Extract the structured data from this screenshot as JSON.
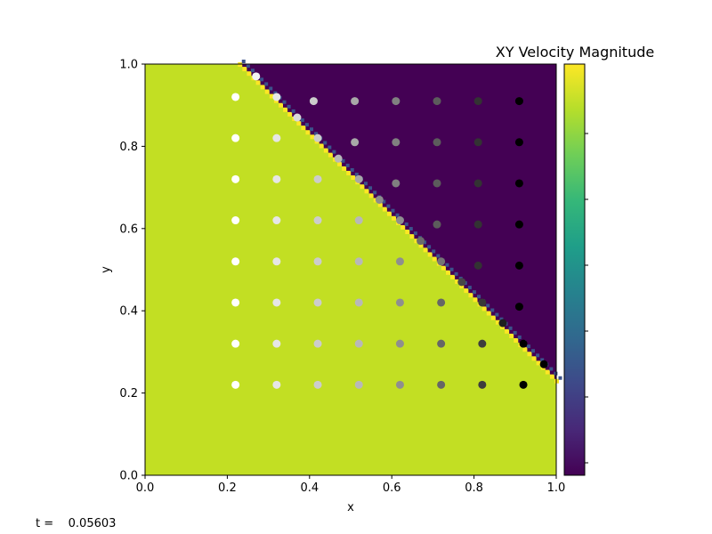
{
  "chart_data": {
    "type": "heatmap",
    "title": "XY Velocity Magnitude",
    "xlabel": "x",
    "ylabel": "y",
    "xlim": [
      0.0,
      1.0
    ],
    "ylim": [
      0.0,
      1.0
    ],
    "x_ticks": [
      "0.0",
      "0.2",
      "0.4",
      "0.6",
      "0.8",
      "1.0"
    ],
    "y_ticks": [
      "0.0",
      "0.2",
      "0.4",
      "0.6",
      "0.8",
      "1.0"
    ],
    "grid": false,
    "field": {
      "description_of_region_boundary": "interface line from (0.23,1.0) to (1.0,0.23)",
      "lower_left_color": "#c2df23",
      "upper_right_color": "#440154",
      "interface_color": "#fde725",
      "interface_edge_color": "#3b528b",
      "interface_start": [
        0.23,
        1.0
      ],
      "interface_end": [
        1.0,
        0.23
      ]
    },
    "colorbar": {
      "colormap": "viridis",
      "colors": [
        "#440154",
        "#482878",
        "#3e4989",
        "#31688e",
        "#26828e",
        "#1f9e89",
        "#35b779",
        "#6ece58",
        "#b5de2b",
        "#fde725"
      ],
      "tick_count": 6,
      "tick_labels": []
    },
    "particles": [
      {
        "x": 0.22,
        "y": 0.92,
        "g": 1.0
      },
      {
        "x": 0.32,
        "y": 0.92,
        "g": 0.9
      },
      {
        "x": 0.41,
        "y": 0.91,
        "g": 0.8
      },
      {
        "x": 0.51,
        "y": 0.91,
        "g": 0.66
      },
      {
        "x": 0.61,
        "y": 0.91,
        "g": 0.5
      },
      {
        "x": 0.71,
        "y": 0.91,
        "g": 0.36
      },
      {
        "x": 0.81,
        "y": 0.91,
        "g": 0.2
      },
      {
        "x": 0.91,
        "y": 0.91,
        "g": 0.0
      },
      {
        "x": 0.22,
        "y": 0.82,
        "g": 1.0
      },
      {
        "x": 0.32,
        "y": 0.82,
        "g": 0.9
      },
      {
        "x": 0.42,
        "y": 0.82,
        "g": 0.8
      },
      {
        "x": 0.51,
        "y": 0.81,
        "g": 0.66
      },
      {
        "x": 0.61,
        "y": 0.81,
        "g": 0.5
      },
      {
        "x": 0.71,
        "y": 0.81,
        "g": 0.36
      },
      {
        "x": 0.81,
        "y": 0.81,
        "g": 0.2
      },
      {
        "x": 0.91,
        "y": 0.81,
        "g": 0.0
      },
      {
        "x": 0.22,
        "y": 0.72,
        "g": 1.0
      },
      {
        "x": 0.32,
        "y": 0.72,
        "g": 0.9
      },
      {
        "x": 0.42,
        "y": 0.72,
        "g": 0.8
      },
      {
        "x": 0.52,
        "y": 0.72,
        "g": 0.66
      },
      {
        "x": 0.61,
        "y": 0.71,
        "g": 0.5
      },
      {
        "x": 0.71,
        "y": 0.71,
        "g": 0.36
      },
      {
        "x": 0.81,
        "y": 0.71,
        "g": 0.2
      },
      {
        "x": 0.91,
        "y": 0.71,
        "g": 0.0
      },
      {
        "x": 0.22,
        "y": 0.62,
        "g": 1.0
      },
      {
        "x": 0.32,
        "y": 0.62,
        "g": 0.9
      },
      {
        "x": 0.42,
        "y": 0.62,
        "g": 0.8
      },
      {
        "x": 0.52,
        "y": 0.62,
        "g": 0.72
      },
      {
        "x": 0.62,
        "y": 0.62,
        "g": 0.56
      },
      {
        "x": 0.71,
        "y": 0.61,
        "g": 0.36
      },
      {
        "x": 0.81,
        "y": 0.61,
        "g": 0.2
      },
      {
        "x": 0.91,
        "y": 0.61,
        "g": 0.0
      },
      {
        "x": 0.22,
        "y": 0.52,
        "g": 1.0
      },
      {
        "x": 0.32,
        "y": 0.52,
        "g": 0.9
      },
      {
        "x": 0.42,
        "y": 0.52,
        "g": 0.8
      },
      {
        "x": 0.52,
        "y": 0.52,
        "g": 0.72
      },
      {
        "x": 0.62,
        "y": 0.52,
        "g": 0.56
      },
      {
        "x": 0.72,
        "y": 0.52,
        "g": 0.46
      },
      {
        "x": 0.81,
        "y": 0.51,
        "g": 0.2
      },
      {
        "x": 0.91,
        "y": 0.51,
        "g": 0.0
      },
      {
        "x": 0.22,
        "y": 0.42,
        "g": 1.0
      },
      {
        "x": 0.32,
        "y": 0.42,
        "g": 0.9
      },
      {
        "x": 0.42,
        "y": 0.42,
        "g": 0.8
      },
      {
        "x": 0.52,
        "y": 0.42,
        "g": 0.72
      },
      {
        "x": 0.62,
        "y": 0.42,
        "g": 0.56
      },
      {
        "x": 0.72,
        "y": 0.42,
        "g": 0.4
      },
      {
        "x": 0.82,
        "y": 0.42,
        "g": 0.22
      },
      {
        "x": 0.91,
        "y": 0.41,
        "g": 0.0
      },
      {
        "x": 0.22,
        "y": 0.32,
        "g": 1.0
      },
      {
        "x": 0.32,
        "y": 0.32,
        "g": 0.9
      },
      {
        "x": 0.42,
        "y": 0.32,
        "g": 0.8
      },
      {
        "x": 0.52,
        "y": 0.32,
        "g": 0.72
      },
      {
        "x": 0.62,
        "y": 0.32,
        "g": 0.56
      },
      {
        "x": 0.72,
        "y": 0.32,
        "g": 0.4
      },
      {
        "x": 0.82,
        "y": 0.32,
        "g": 0.24
      },
      {
        "x": 0.92,
        "y": 0.32,
        "g": 0.0
      },
      {
        "x": 0.22,
        "y": 0.22,
        "g": 1.0
      },
      {
        "x": 0.32,
        "y": 0.22,
        "g": 0.9
      },
      {
        "x": 0.42,
        "y": 0.22,
        "g": 0.8
      },
      {
        "x": 0.52,
        "y": 0.22,
        "g": 0.72
      },
      {
        "x": 0.62,
        "y": 0.22,
        "g": 0.56
      },
      {
        "x": 0.72,
        "y": 0.22,
        "g": 0.4
      },
      {
        "x": 0.82,
        "y": 0.22,
        "g": 0.24
      },
      {
        "x": 0.92,
        "y": 0.22,
        "g": 0.0
      },
      {
        "x": 0.27,
        "y": 0.97,
        "g": 0.95
      },
      {
        "x": 0.37,
        "y": 0.87,
        "g": 0.85
      },
      {
        "x": 0.47,
        "y": 0.77,
        "g": 0.72
      },
      {
        "x": 0.57,
        "y": 0.67,
        "g": 0.55
      },
      {
        "x": 0.67,
        "y": 0.57,
        "g": 0.42
      },
      {
        "x": 0.77,
        "y": 0.47,
        "g": 0.28
      },
      {
        "x": 0.87,
        "y": 0.37,
        "g": 0.12
      },
      {
        "x": 0.97,
        "y": 0.27,
        "g": 0.0
      }
    ]
  },
  "footer": {
    "time_label": "t =    0.05603"
  }
}
